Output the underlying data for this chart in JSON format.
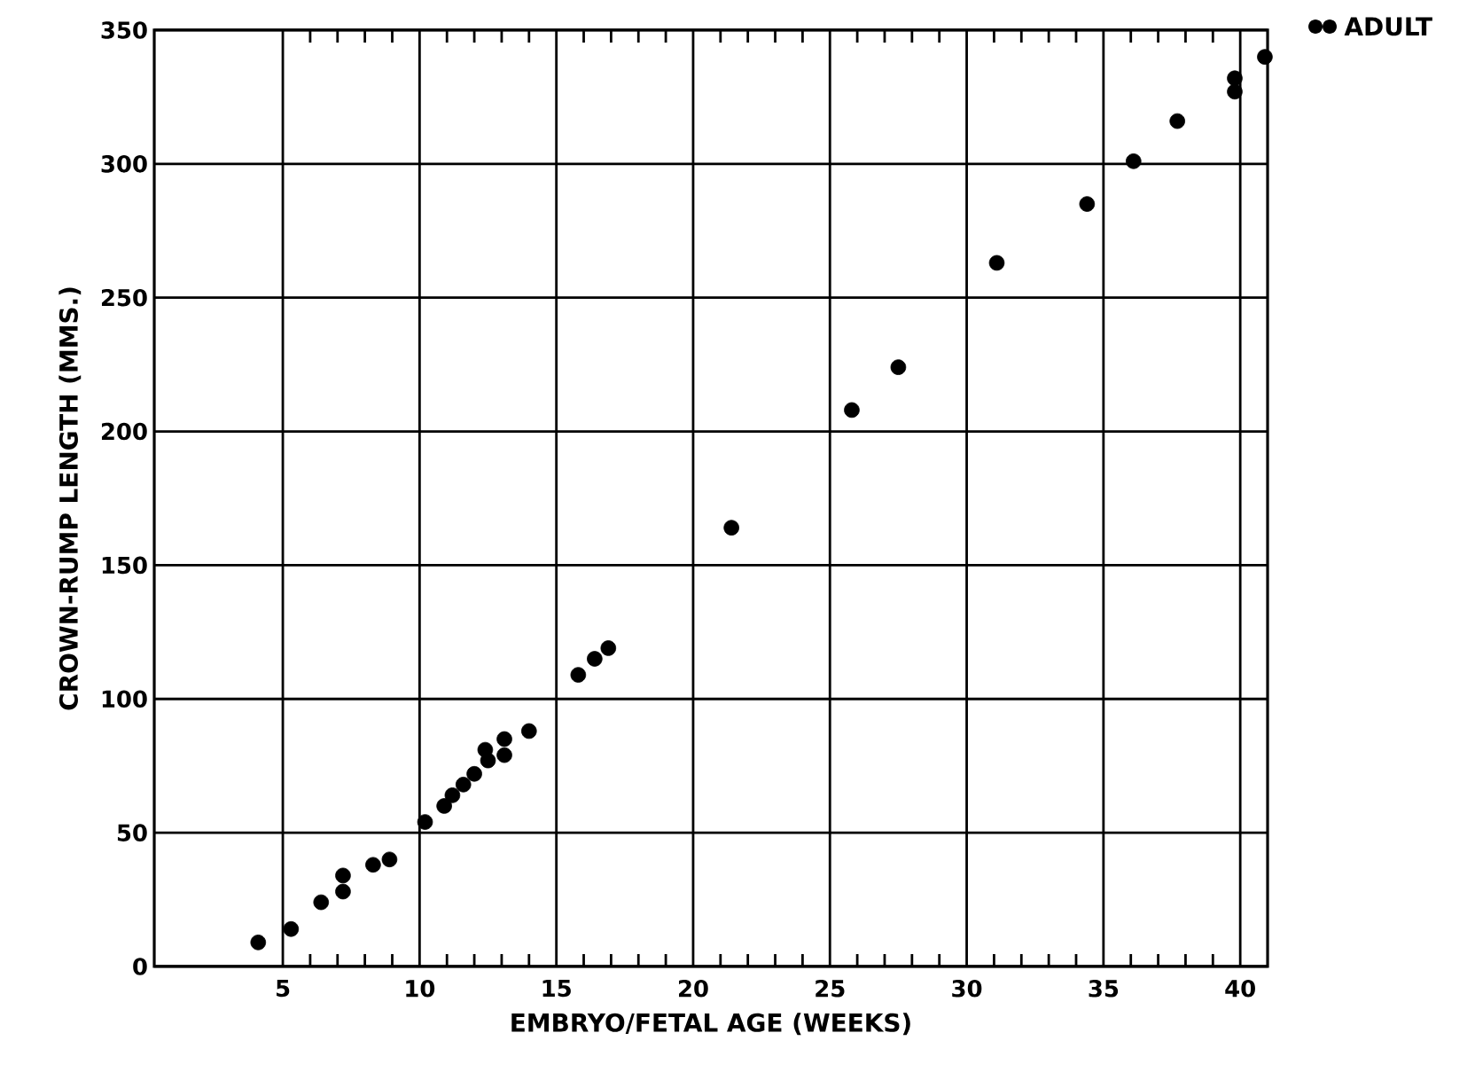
{
  "chart_data": {
    "type": "scatter",
    "xlabel": "EMBRYO/FETAL AGE (WEEKS)",
    "ylabel": "CROWN-RUMP LENGTH (MMS.)",
    "x": [
      4.1,
      5.3,
      6.4,
      7.2,
      7.2,
      8.3,
      8.9,
      10.2,
      10.9,
      11.2,
      11.6,
      12.0,
      12.4,
      12.5,
      13.1,
      13.1,
      14.0,
      15.8,
      16.4,
      16.9,
      21.4,
      25.8,
      27.5,
      31.1,
      34.4,
      36.1,
      37.7,
      39.8,
      39.8,
      40.9
    ],
    "values": [
      9,
      14,
      24,
      28,
      34,
      38,
      40,
      54,
      60,
      64,
      68,
      72,
      81,
      77,
      85,
      79,
      88,
      109,
      115,
      119,
      164,
      208,
      224,
      263,
      285,
      301,
      316,
      332,
      327,
      340
    ],
    "color": "#000000",
    "marker": "circle",
    "xlim": [
      0.3,
      41
    ],
    "xticks": [
      5,
      10,
      15,
      20,
      25,
      30,
      35,
      40
    ],
    "ylim": [
      0,
      350
    ],
    "yticks": [
      0,
      50,
      100,
      150,
      200,
      250,
      300,
      350
    ],
    "grid": true,
    "annotations": [
      "ADULT"
    ]
  }
}
